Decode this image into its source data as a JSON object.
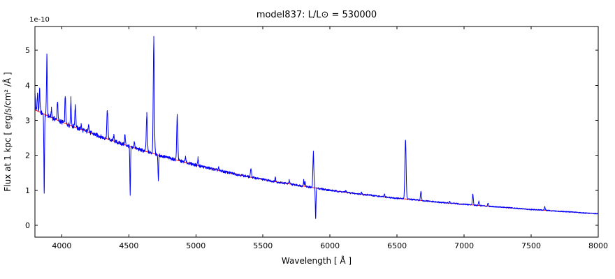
{
  "figure": {
    "background": "#ffffff"
  },
  "chart_data": {
    "type": "line",
    "title": "model837: L/L⊙ = 530000",
    "xlabel": "Wavelength [ Å ]",
    "ylabel": "Flux at 1 kpc [ erg/s/cm² /Å ]",
    "y_offset_label": "1e-10",
    "xlim": [
      3800,
      8000
    ],
    "ylim": [
      -0.34,
      5.68
    ],
    "xticks": [
      4000,
      4500,
      5000,
      5500,
      6000,
      6500,
      7000,
      7500,
      8000
    ],
    "yticks": [
      0,
      1,
      2,
      3,
      4,
      5
    ],
    "grid": false,
    "legend": null,
    "series": [
      {
        "name": "model spectrum",
        "color": "#0000ff",
        "derived": "continuum + emission_lines + noise"
      },
      {
        "name": "continuum fit",
        "color": "#ff0000",
        "x": [
          3800,
          3900,
          4000,
          4100,
          4200,
          4300,
          4400,
          4500,
          4600,
          4700,
          4800,
          4900,
          5000,
          5100,
          5200,
          5300,
          5400,
          5500,
          5600,
          5700,
          5800,
          5900,
          6000,
          6100,
          6200,
          6300,
          6400,
          6500,
          6600,
          6700,
          6800,
          6900,
          7000,
          7100,
          7200,
          7300,
          7400,
          7500,
          7600,
          7700,
          7800,
          7900,
          8000
        ],
        "y": [
          3.3,
          3.12,
          2.95,
          2.8,
          2.66,
          2.52,
          2.39,
          2.26,
          2.14,
          2.03,
          1.92,
          1.82,
          1.72,
          1.63,
          1.54,
          1.46,
          1.38,
          1.31,
          1.24,
          1.18,
          1.12,
          1.06,
          1.0,
          0.95,
          0.9,
          0.86,
          0.81,
          0.77,
          0.74,
          0.7,
          0.66,
          0.63,
          0.6,
          0.57,
          0.54,
          0.51,
          0.48,
          0.45,
          0.43,
          0.4,
          0.38,
          0.35,
          0.33
        ]
      }
    ],
    "emission_lines_format": "[wavelength_A, amplitude_1e-10 (negative = absorption), sigma_A]",
    "emission_lines": [
      [
        3800,
        0.45,
        3
      ],
      [
        3819,
        0.5,
        3
      ],
      [
        3835,
        0.62,
        3
      ],
      [
        3869,
        -2.25,
        2.5
      ],
      [
        3889,
        1.65,
        3
      ],
      [
        3923,
        0.22,
        3
      ],
      [
        3968,
        0.55,
        3
      ],
      [
        4026,
        0.8,
        3
      ],
      [
        4068,
        0.75,
        3
      ],
      [
        4101,
        0.65,
        3.5
      ],
      [
        4144,
        0.14,
        3
      ],
      [
        4200,
        0.28,
        3
      ],
      [
        4340,
        0.82,
        4
      ],
      [
        4388,
        0.14,
        3
      ],
      [
        4471,
        0.28,
        3
      ],
      [
        4510,
        -1.4,
        2.5
      ],
      [
        4542,
        0.18,
        3
      ],
      [
        4634,
        1.05,
        4
      ],
      [
        4686,
        3.32,
        4
      ],
      [
        4720,
        -0.75,
        2.5
      ],
      [
        4861,
        1.28,
        4
      ],
      [
        4922,
        0.14,
        3
      ],
      [
        5016,
        0.22,
        3
      ],
      [
        5169,
        0.08,
        3
      ],
      [
        5411,
        0.26,
        3.5
      ],
      [
        5592,
        0.12,
        3
      ],
      [
        5696,
        0.1,
        3
      ],
      [
        5804,
        0.18,
        2.5
      ],
      [
        5814,
        0.15,
        2.5
      ],
      [
        5876,
        1.0,
        3.5
      ],
      [
        5893,
        -0.88,
        2.5
      ],
      [
        6118,
        0.05,
        3
      ],
      [
        6234,
        0.05,
        3
      ],
      [
        6406,
        0.07,
        3
      ],
      [
        6563,
        1.7,
        4.5
      ],
      [
        6678,
        0.24,
        3.5
      ],
      [
        6891,
        0.05,
        3
      ],
      [
        7065,
        0.3,
        3.5
      ],
      [
        7110,
        0.12,
        3
      ],
      [
        7178,
        0.08,
        3
      ],
      [
        7602,
        0.1,
        3
      ]
    ],
    "noise_amplitude": 0.022
  }
}
